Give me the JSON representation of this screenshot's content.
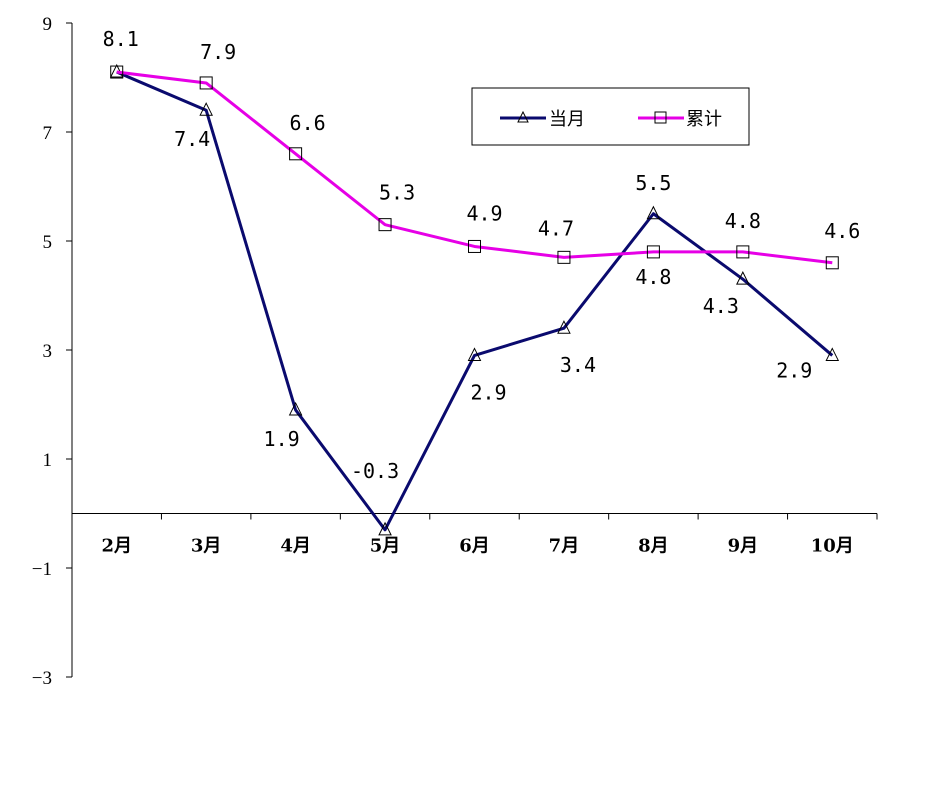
{
  "chart_data": {
    "type": "line",
    "categories": [
      "2月",
      "3月",
      "4月",
      "5月",
      "6月",
      "7月",
      "8月",
      "9月",
      "10月"
    ],
    "series": [
      {
        "name": "当月",
        "color": "#0A0A6E",
        "marker": "triangle",
        "values": [
          8.1,
          7.4,
          1.9,
          -0.3,
          2.9,
          3.4,
          5.5,
          4.3,
          2.9
        ],
        "labels": [
          "",
          "7.4",
          "1.9",
          "-0.3",
          "2.9",
          "3.4",
          "5.5",
          "4.3",
          "2.9"
        ]
      },
      {
        "name": "累计",
        "color": "#E600E6",
        "marker": "square",
        "values": [
          8.1,
          7.9,
          6.6,
          5.3,
          4.9,
          4.7,
          4.8,
          4.8,
          4.6
        ],
        "labels": [
          "8.1",
          "7.9",
          "6.6",
          "5.3",
          "4.9",
          "4.7",
          "4.8",
          "4.8",
          "4.6"
        ]
      }
    ],
    "ylim": [
      -3,
      9
    ],
    "yticks": [
      9,
      7,
      5,
      3,
      1,
      -1,
      -3
    ],
    "ytick_labels": [
      "9",
      "7",
      "5",
      "3",
      "1",
      "−1",
      "−3"
    ],
    "legend": "top-right",
    "grid": false
  }
}
